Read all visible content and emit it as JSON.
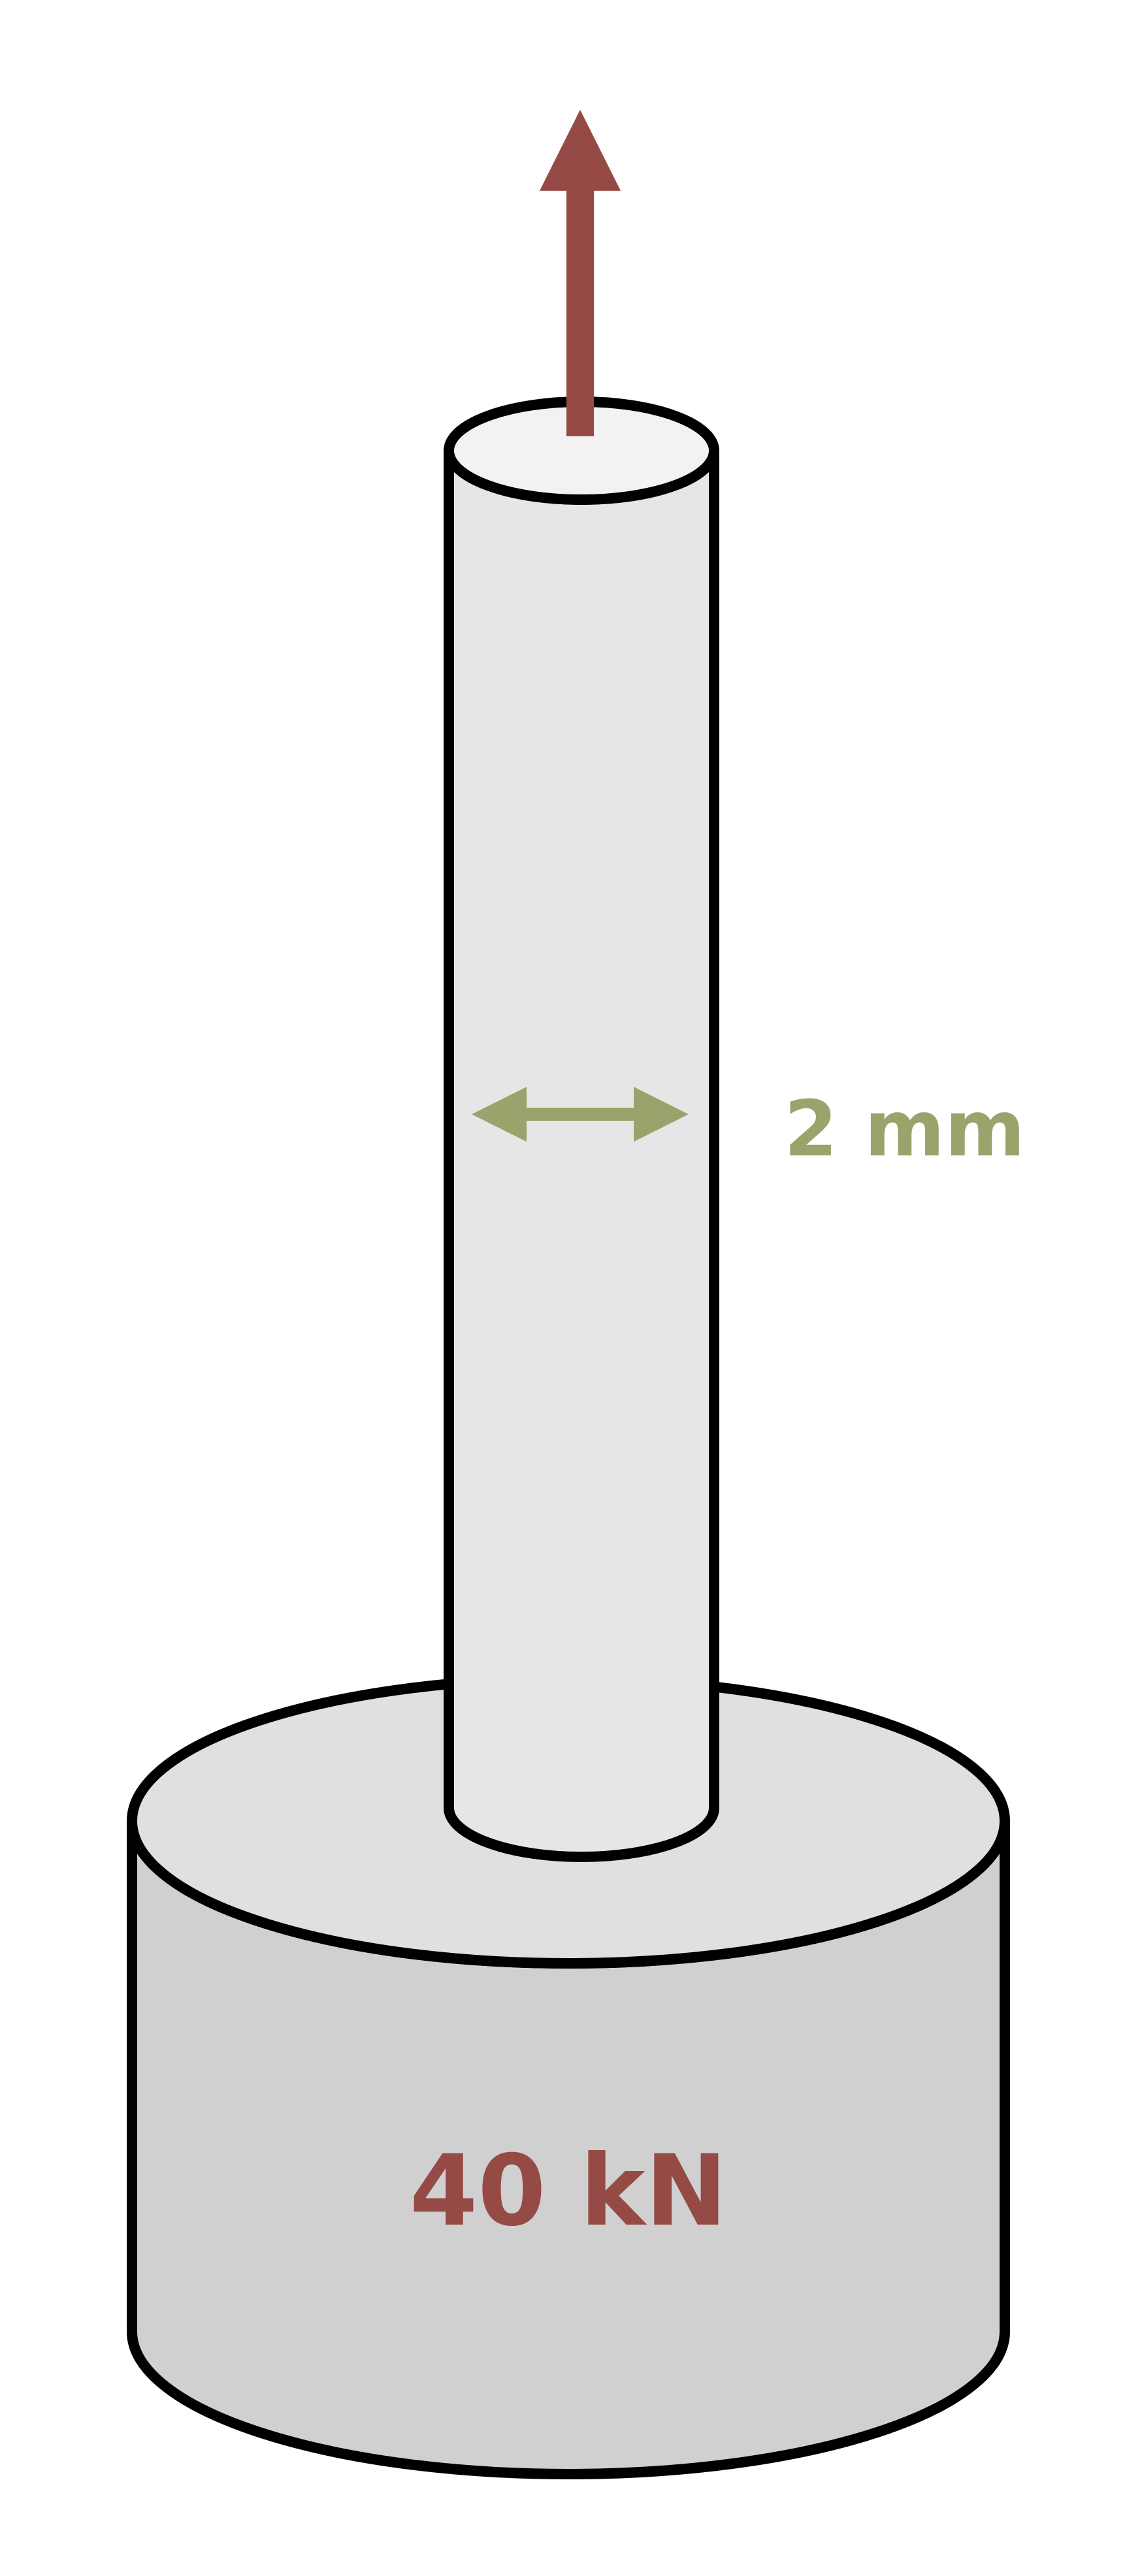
{
  "labels": {
    "diameter": "2 mm",
    "load": "40 kN"
  },
  "colors": {
    "outline": "#000000",
    "rod_body": "#e6e6e6",
    "rod_top": "#f2f2f2",
    "weight_top": "#e0e0e0",
    "weight_side": "#d0d0d0",
    "force_arrow": "#954a45",
    "dimension_arrow": "#99a36b"
  },
  "icons": {
    "force": "arrow-up-icon",
    "dimension": "double-arrow-horizontal-icon"
  }
}
